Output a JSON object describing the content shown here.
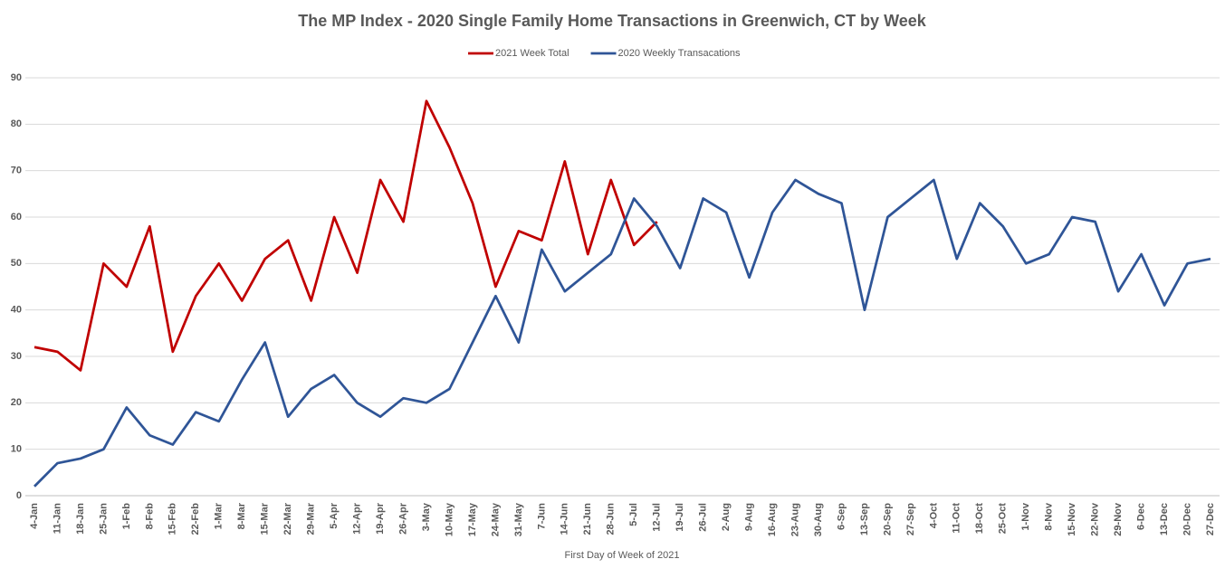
{
  "chart_data": {
    "type": "line",
    "title": "The MP Index - 2020 Single Family Home Transactions  in Greenwich, CT by Week",
    "x_label": "First Day of Week of 2021",
    "categories": [
      "4-Jan",
      "11-Jan",
      "18-Jan",
      "25-Jan",
      "1-Feb",
      "8-Feb",
      "15-Feb",
      "22-Feb",
      "1-Mar",
      "8-Mar",
      "15-Mar",
      "22-Mar",
      "29-Mar",
      "5-Apr",
      "12-Apr",
      "19-Apr",
      "26-Apr",
      "3-May",
      "10-May",
      "17-May",
      "24-May",
      "31-May",
      "7-Jun",
      "14-Jun",
      "21-Jun",
      "28-Jun",
      "5-Jul",
      "12-Jul",
      "19-Jul",
      "26-Jul",
      "2-Aug",
      "9-Aug",
      "16-Aug",
      "23-Aug",
      "30-Aug",
      "6-Sep",
      "13-Sep",
      "20-Sep",
      "27-Sep",
      "4-Oct",
      "11-Oct",
      "18-Oct",
      "25-Oct",
      "1-Nov",
      "8-Nov",
      "15-Nov",
      "22-Nov",
      "29-Nov",
      "6-Dec",
      "13-Dec",
      "20-Dec",
      "27-Dec"
    ],
    "series": [
      {
        "name": "2021 Week Total",
        "color": "#c00000",
        "values": [
          32,
          31,
          27,
          50,
          45,
          58,
          31,
          43,
          50,
          42,
          51,
          55,
          42,
          60,
          48,
          68,
          59,
          85,
          75,
          63,
          45,
          57,
          55,
          72,
          52,
          68,
          54,
          59,
          null,
          null,
          null,
          null,
          null,
          null,
          null,
          null,
          null,
          null,
          null,
          null,
          null,
          null,
          null,
          null,
          null,
          null,
          null,
          null,
          null,
          null,
          null,
          null
        ]
      },
      {
        "name": "2020 Weekly Transacations",
        "color": "#2f5597",
        "values": [
          2,
          7,
          8,
          10,
          19,
          13,
          11,
          18,
          16,
          25,
          33,
          17,
          23,
          26,
          20,
          17,
          21,
          20,
          23,
          33,
          43,
          33,
          53,
          44,
          48,
          52,
          64,
          58,
          49,
          64,
          61,
          47,
          61,
          68,
          65,
          63,
          40,
          60,
          64,
          68,
          51,
          63,
          58,
          50,
          52,
          60,
          59,
          44,
          52,
          41,
          50,
          51
        ]
      }
    ],
    "ylim": [
      0,
      90
    ],
    "yticks": [
      0,
      10,
      20,
      30,
      40,
      50,
      60,
      70,
      80,
      90
    ],
    "grid": true,
    "legend": "top"
  }
}
